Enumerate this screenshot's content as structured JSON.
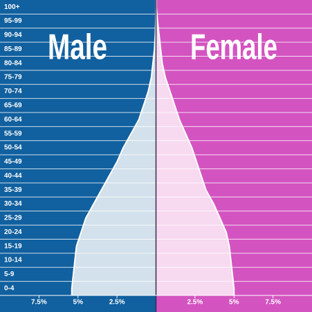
{
  "chart_data": {
    "type": "population-pyramid",
    "categories": [
      "0-4",
      "5-9",
      "10-14",
      "15-19",
      "20-24",
      "25-29",
      "30-34",
      "35-39",
      "40-44",
      "45-49",
      "50-54",
      "55-59",
      "60-64",
      "65-69",
      "70-74",
      "75-79",
      "80-84",
      "85-89",
      "90-94",
      "95-99",
      "100+"
    ],
    "series": [
      {
        "name": "Male",
        "side": "left",
        "color": "#11609f",
        "fill": "#d2e1ec",
        "values": [
          5.4,
          5.3,
          5.2,
          5.1,
          4.8,
          4.5,
          4.0,
          3.5,
          3.0,
          2.5,
          2.1,
          1.6,
          1.1,
          0.8,
          0.5,
          0.3,
          0.2,
          0.1,
          0.05,
          0.02,
          0
        ]
      },
      {
        "name": "Female",
        "side": "right",
        "color": "#d354c0",
        "fill": "#f7d9f0",
        "values": [
          5.0,
          4.9,
          4.8,
          4.7,
          4.5,
          4.1,
          3.7,
          3.2,
          2.9,
          2.6,
          2.3,
          1.9,
          1.5,
          1.2,
          0.9,
          0.6,
          0.4,
          0.3,
          0.2,
          0.1,
          0.02
        ]
      }
    ],
    "xlim": [
      -10,
      10
    ],
    "xticks": [
      {
        "value": -7.5,
        "label": "7.5%"
      },
      {
        "value": -5,
        "label": "5%"
      },
      {
        "value": -2.5,
        "label": "2.5%"
      },
      {
        "value": 2.5,
        "label": "2.5%"
      },
      {
        "value": 5,
        "label": "5%"
      },
      {
        "value": 7.5,
        "label": "7.5%"
      }
    ]
  }
}
